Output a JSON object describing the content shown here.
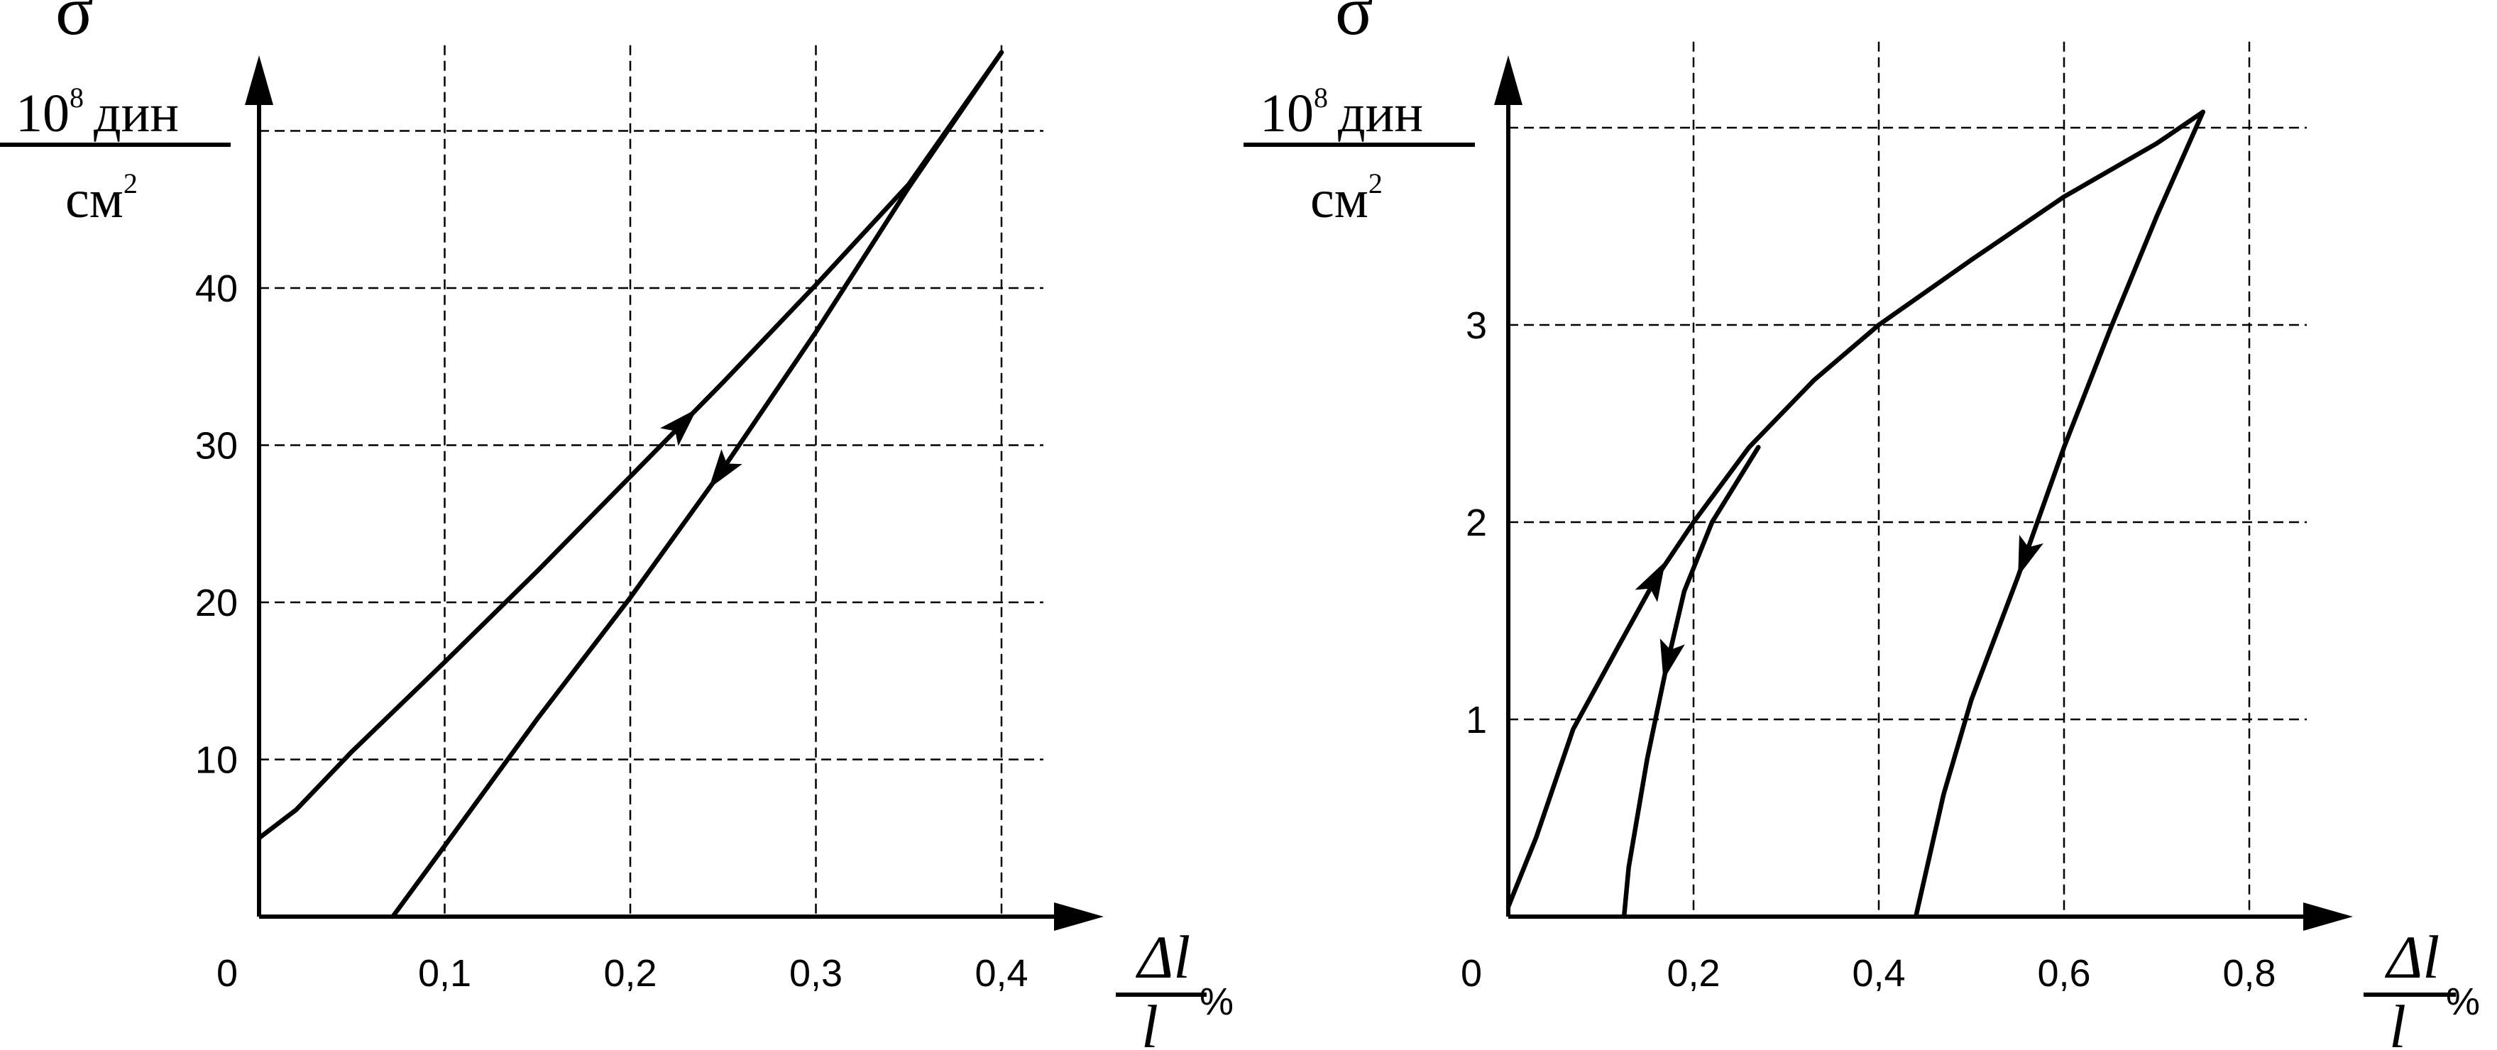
{
  "chart_data": [
    {
      "type": "line",
      "ylabel": {
        "symbol": "σ",
        "numerator_base": "10",
        "numerator_exp": "8",
        "numerator_unit": "дин",
        "denominator_base": "см",
        "denominator_exp": "2"
      },
      "xlabel": {
        "numerator": "Δl",
        "denominator": "l",
        "unit": "%"
      },
      "origin_label": "0",
      "xticks": [
        0.1,
        0.2,
        0.3,
        0.4
      ],
      "xtick_labels": [
        "0,1",
        "0,2",
        "0,3",
        "0,4"
      ],
      "yticks": [
        10,
        20,
        30,
        40
      ],
      "ytick_labels": [
        "10",
        "20",
        "30",
        "40"
      ],
      "xlim": [
        0,
        0.45
      ],
      "ylim": [
        0,
        55
      ],
      "grid_x": [
        0.1,
        0.2,
        0.3,
        0.4
      ],
      "grid_y": [
        10,
        20,
        30,
        40,
        50
      ],
      "grid": true,
      "series": [
        {
          "x": [
            0.0,
            0.02,
            0.05,
            0.1,
            0.15,
            0.2,
            0.25,
            0.3,
            0.35,
            0.4
          ],
          "y": [
            5,
            6.8,
            10.5,
            16.2,
            22,
            28,
            34,
            40.2,
            46.6,
            55
          ],
          "arrow_at": 0.229
        },
        {
          "x": [
            0.4,
            0.35,
            0.3,
            0.25,
            0.2,
            0.15,
            0.1,
            0.072
          ],
          "y": [
            55,
            46.4,
            37.2,
            28.5,
            20.3,
            12.6,
            4.5,
            0
          ],
          "arrow_at": 0.248
        }
      ]
    },
    {
      "type": "line",
      "ylabel": {
        "symbol": "σ",
        "numerator_base": "10",
        "numerator_exp": "8",
        "numerator_unit": "дин",
        "denominator_base": "см",
        "denominator_exp": "2"
      },
      "xlabel": {
        "numerator": "Δl",
        "denominator": "l",
        "unit": "%"
      },
      "origin_label": "0",
      "xticks": [
        0.2,
        0.4,
        0.6,
        0.8
      ],
      "xtick_labels": [
        "0,2",
        "0,4",
        "0,6",
        "0,8"
      ],
      "yticks": [
        1,
        2,
        3
      ],
      "ytick_labels": [
        "1",
        "2",
        "3"
      ],
      "xlim": [
        0,
        0.9
      ],
      "ylim": [
        0,
        4.4
      ],
      "grid_x": [
        0.2,
        0.4,
        0.6,
        0.8
      ],
      "grid_y": [
        1,
        2,
        3,
        4
      ],
      "grid": true,
      "series": [
        {
          "x": [
            0.0,
            0.03,
            0.07,
            0.12,
            0.16,
            0.2,
            0.26,
            0.33,
            0.4,
            0.5,
            0.6,
            0.7,
            0.75
          ],
          "y": [
            0.05,
            0.4,
            0.95,
            1.38,
            1.72,
            2.0,
            2.38,
            2.72,
            3.0,
            3.33,
            3.65,
            3.92,
            4.08
          ],
          "arrow_at": 0.16
        },
        {
          "x": [
            0.27,
            0.22,
            0.19,
            0.17,
            0.15,
            0.13,
            0.125
          ],
          "y": [
            2.38,
            2.0,
            1.65,
            1.25,
            0.8,
            0.25,
            0
          ],
          "arrow_at": 0.172
        },
        {
          "x": [
            0.75,
            0.7,
            0.65,
            0.6,
            0.55,
            0.5,
            0.47,
            0.44
          ],
          "y": [
            4.08,
            3.55,
            2.98,
            2.38,
            1.72,
            1.1,
            0.62,
            0
          ],
          "arrow_at": 0.557
        }
      ]
    }
  ]
}
